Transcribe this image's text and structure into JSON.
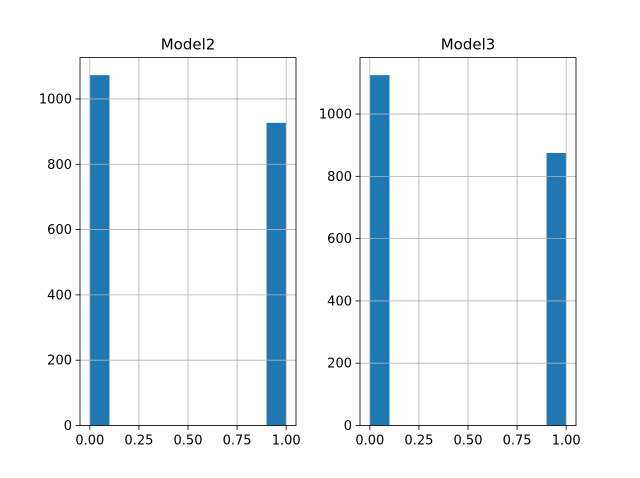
{
  "chart_data": [
    {
      "type": "bar",
      "title": "Model2",
      "bins": [
        {
          "x0": 0.0,
          "x1": 0.1,
          "value": 1073
        },
        {
          "x0": 0.9,
          "x1": 1.0,
          "value": 927
        }
      ],
      "xlim": [
        -0.05,
        1.05
      ],
      "ylim": [
        0,
        1126.65
      ],
      "xticks": [
        0.0,
        0.25,
        0.5,
        0.75,
        1.0
      ],
      "xtick_labels": [
        "0.00",
        "0.25",
        "0.50",
        "0.75",
        "1.00"
      ],
      "yticks": [
        0,
        200,
        400,
        600,
        800,
        1000
      ],
      "ytick_labels": [
        "0",
        "200",
        "400",
        "600",
        "800",
        "1000"
      ],
      "grid": true,
      "bar_color": "#1f77b4"
    },
    {
      "type": "bar",
      "title": "Model3",
      "bins": [
        {
          "x0": 0.0,
          "x1": 0.1,
          "value": 1125
        },
        {
          "x0": 0.9,
          "x1": 1.0,
          "value": 875
        }
      ],
      "xlim": [
        -0.05,
        1.05
      ],
      "ylim": [
        0,
        1181.25
      ],
      "xticks": [
        0.0,
        0.25,
        0.5,
        0.75,
        1.0
      ],
      "xtick_labels": [
        "0.00",
        "0.25",
        "0.50",
        "0.75",
        "1.00"
      ],
      "yticks": [
        0,
        200,
        400,
        600,
        800,
        1000
      ],
      "ytick_labels": [
        "0",
        "200",
        "400",
        "600",
        "800",
        "1000"
      ],
      "grid": true,
      "bar_color": "#1f77b4"
    }
  ]
}
